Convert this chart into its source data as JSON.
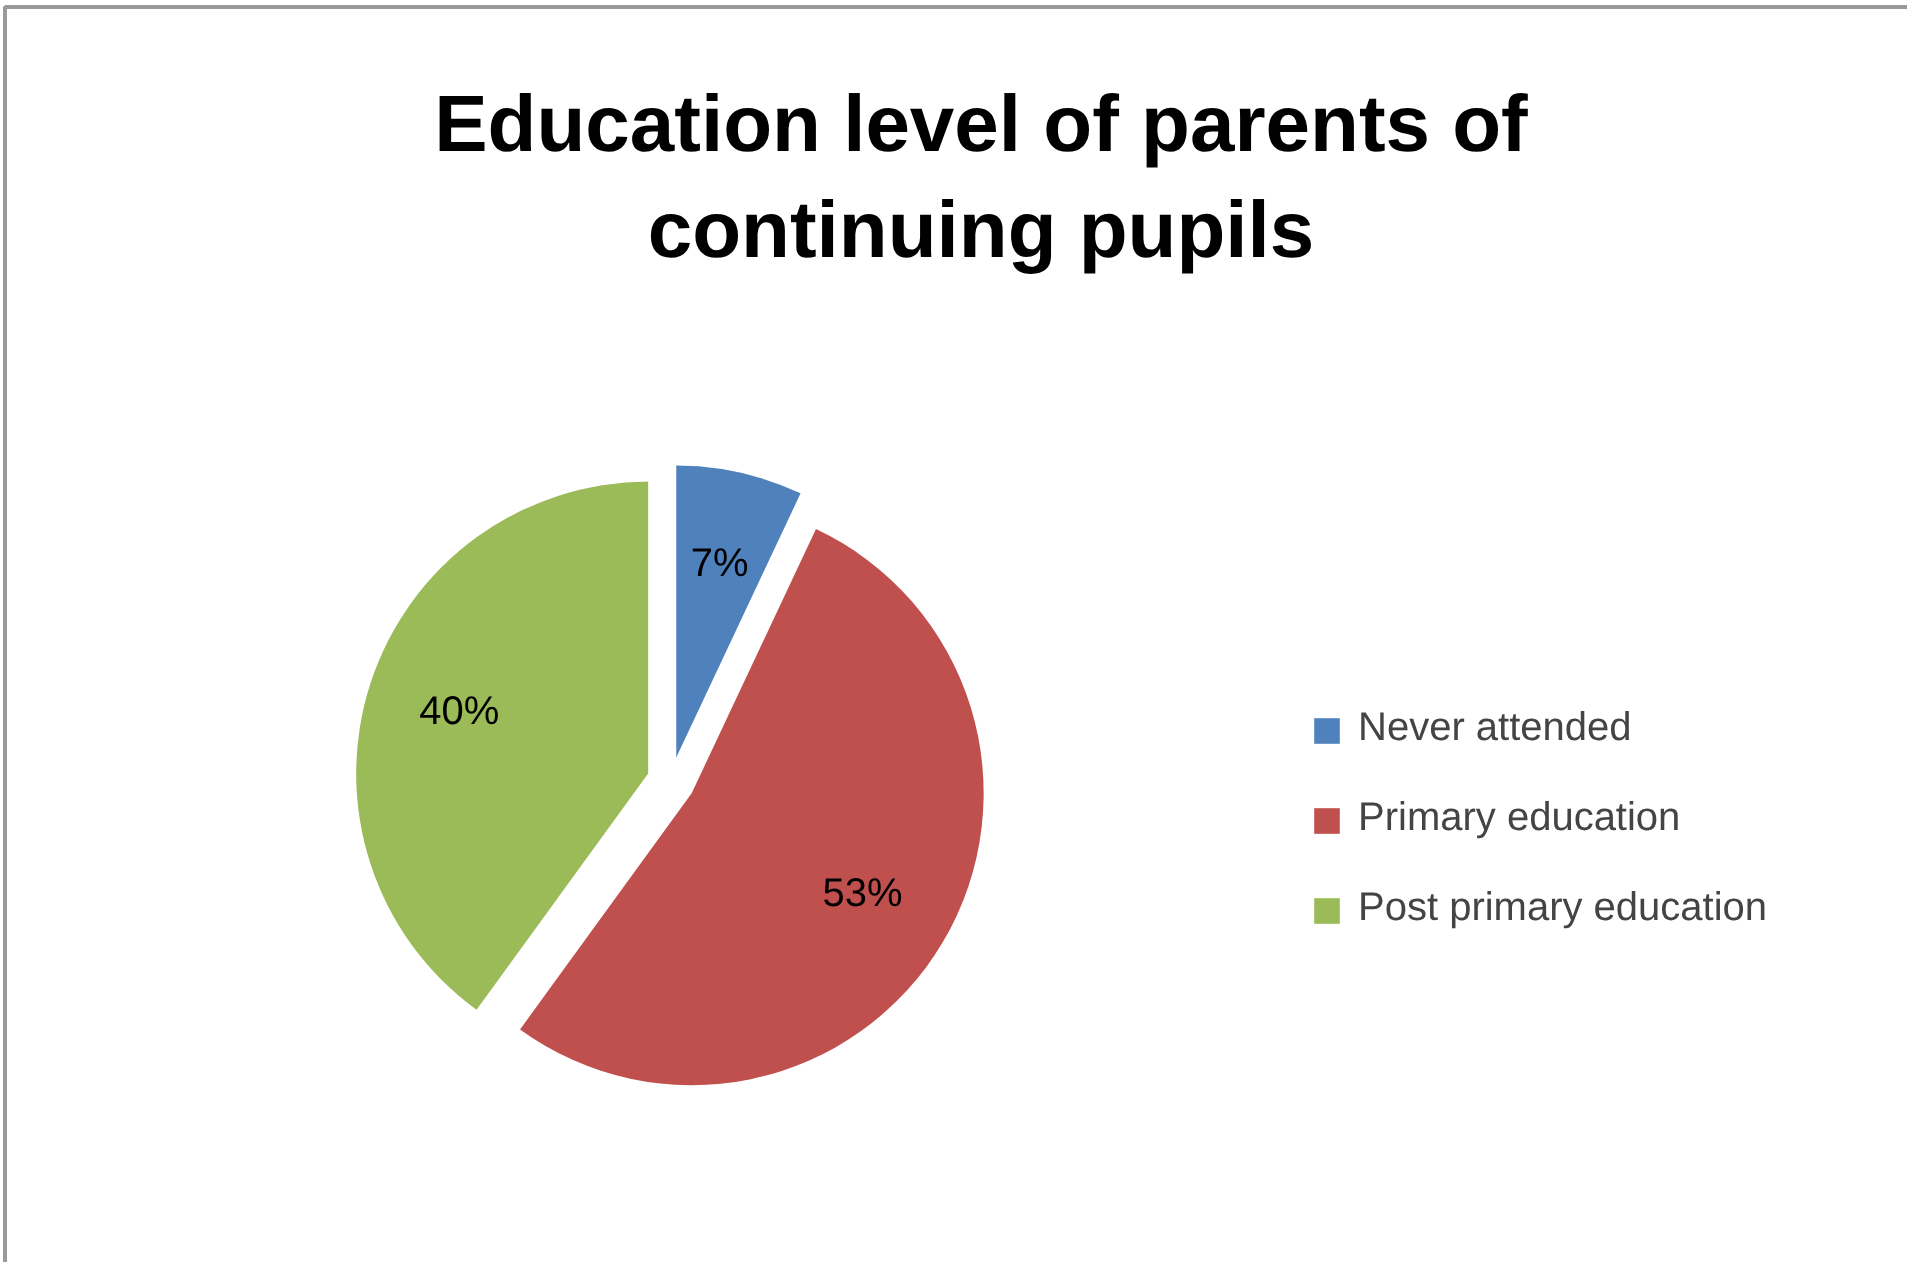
{
  "chart_data": {
    "type": "pie",
    "title": "Education level of parents of continuing pupils",
    "categories": [
      "Never attended",
      "Primary education",
      "Post primary education"
    ],
    "values": [
      7,
      53,
      40
    ],
    "colors": [
      "#4f81bd",
      "#c0504d",
      "#9bbb59"
    ],
    "value_labels": [
      "7%",
      "53%",
      "40%"
    ],
    "legend": "right"
  }
}
